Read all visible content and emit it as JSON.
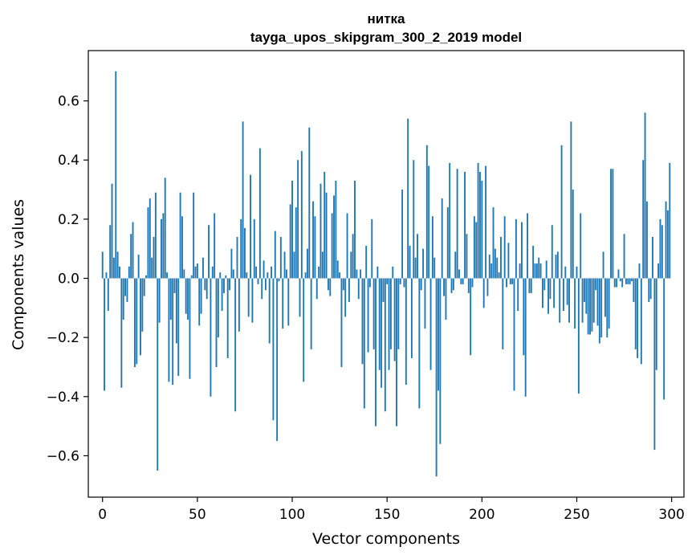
{
  "chart_data": {
    "type": "bar",
    "title": "нитка",
    "subtitle": "tayga_upos_skipgram_300_2_2019 model",
    "xlabel": "Vector components",
    "ylabel": "Components values",
    "xlim": [
      -7.5,
      306.5
    ],
    "ylim": [
      -0.74,
      0.77
    ],
    "xticks": [
      0,
      50,
      100,
      150,
      200,
      250,
      300
    ],
    "xtick_labels": [
      "0",
      "50",
      "100",
      "150",
      "200",
      "250",
      "300"
    ],
    "yticks": [
      -0.6,
      -0.4,
      -0.2,
      0.0,
      0.2,
      0.4,
      0.6
    ],
    "ytick_labels": [
      "−0.6",
      "−0.4",
      "−0.2",
      "0.0",
      "0.2",
      "0.4",
      "0.6"
    ],
    "color": "#1f77b4",
    "values": [
      0.09,
      -0.38,
      0.02,
      -0.11,
      0.18,
      0.32,
      0.07,
      0.7,
      0.09,
      0.04,
      -0.37,
      -0.14,
      -0.06,
      -0.08,
      0.04,
      0.15,
      0.19,
      -0.3,
      -0.29,
      0.08,
      -0.26,
      -0.18,
      -0.06,
      0.01,
      0.24,
      0.27,
      0.07,
      0.14,
      0.29,
      -0.65,
      -0.15,
      0.2,
      0.22,
      0.34,
      0.02,
      -0.35,
      -0.14,
      -0.36,
      -0.05,
      -0.22,
      -0.33,
      0.29,
      0.21,
      0.03,
      -0.12,
      -0.14,
      -0.34,
      0.01,
      0.29,
      0.04,
      0.05,
      -0.16,
      -0.12,
      0.07,
      -0.04,
      -0.07,
      0.18,
      -0.4,
      0.04,
      0.22,
      -0.3,
      -0.2,
      0.02,
      -0.11,
      -0.05,
      0.01,
      -0.27,
      -0.04,
      0.1,
      0.03,
      -0.45,
      0.14,
      -0.18,
      0.2,
      0.53,
      0.17,
      0.02,
      -0.13,
      0.35,
      -0.15,
      0.2,
      0.04,
      -0.02,
      0.44,
      -0.07,
      0.06,
      -0.04,
      0.02,
      -0.22,
      0.04,
      -0.48,
      0.16,
      -0.55,
      -0.01,
      0.14,
      -0.17,
      0.09,
      0.03,
      -0.16,
      0.25,
      0.33,
      0.09,
      0.24,
      0.4,
      -0.13,
      0.43,
      -0.35,
      0.02,
      0.1,
      0.51,
      -0.24,
      0.26,
      0.21,
      -0.07,
      0.04,
      0.32,
      0.09,
      0.36,
      0.29,
      -0.04,
      -0.06,
      0.22,
      0.28,
      0.33,
      0.06,
      0.02,
      -0.3,
      -0.04,
      -0.13,
      0.22,
      -0.08,
      0.09,
      0.15,
      0.33,
      0.03,
      -0.07,
      0.03,
      -0.29,
      -0.44,
      0.11,
      -0.25,
      -0.03,
      0.2,
      -0.24,
      -0.5,
      0.04,
      -0.31,
      -0.37,
      -0.08,
      -0.45,
      -0.02,
      -0.31,
      -0.24,
      0.04,
      -0.28,
      -0.5,
      -0.24,
      -0.02,
      0.3,
      -0.03,
      -0.36,
      0.54,
      0.11,
      -0.27,
      0.4,
      0.07,
      0.15,
      -0.44,
      -0.04,
      0.1,
      -0.17,
      0.45,
      0.38,
      -0.31,
      0.21,
      0.07,
      -0.67,
      -0.38,
      -0.56,
      0.27,
      -0.06,
      -0.14,
      0.24,
      0.39,
      -0.05,
      -0.04,
      0.09,
      0.37,
      0.03,
      -0.02,
      -0.02,
      0.36,
      0.15,
      -0.05,
      -0.26,
      -0.03,
      0.21,
      0.19,
      0.39,
      0.36,
      0.33,
      -0.1,
      0.38,
      -0.06,
      0.08,
      0.05,
      0.24,
      0.1,
      0.07,
      0.02,
      0.14,
      -0.24,
      0.21,
      -0.03,
      0.12,
      -0.02,
      -0.02,
      -0.38,
      0.2,
      -0.11,
      0.05,
      0.19,
      -0.26,
      -0.4,
      0.22,
      -0.05,
      -0.05,
      0.11,
      0.05,
      0.05,
      0.07,
      0.05,
      -0.1,
      -0.04,
      0.06,
      -0.12,
      -0.07,
      0.18,
      -0.1,
      0.08,
      0.09,
      -0.15,
      0.45,
      -0.11,
      0.04,
      -0.09,
      -0.15,
      0.53,
      0.3,
      -0.17,
      0.04,
      -0.39,
      0.22,
      -0.15,
      -0.08,
      -0.12,
      -0.19,
      -0.19,
      -0.18,
      -0.15,
      -0.04,
      -0.16,
      -0.22,
      -0.2,
      0.09,
      -0.13,
      -0.2,
      -0.17,
      0.37,
      0.37,
      -0.03,
      -0.03,
      0.03,
      -0.01,
      -0.03,
      0.15,
      -0.02,
      -0.02,
      -0.02,
      -0.01,
      -0.08,
      -0.24,
      -0.27,
      0.05,
      -0.29,
      0.4,
      0.56,
      0.26,
      -0.08,
      -0.07,
      0.14,
      -0.58,
      -0.31,
      0.05,
      0.2,
      0.18,
      -0.41,
      0.26,
      0.23,
      0.39
    ]
  }
}
